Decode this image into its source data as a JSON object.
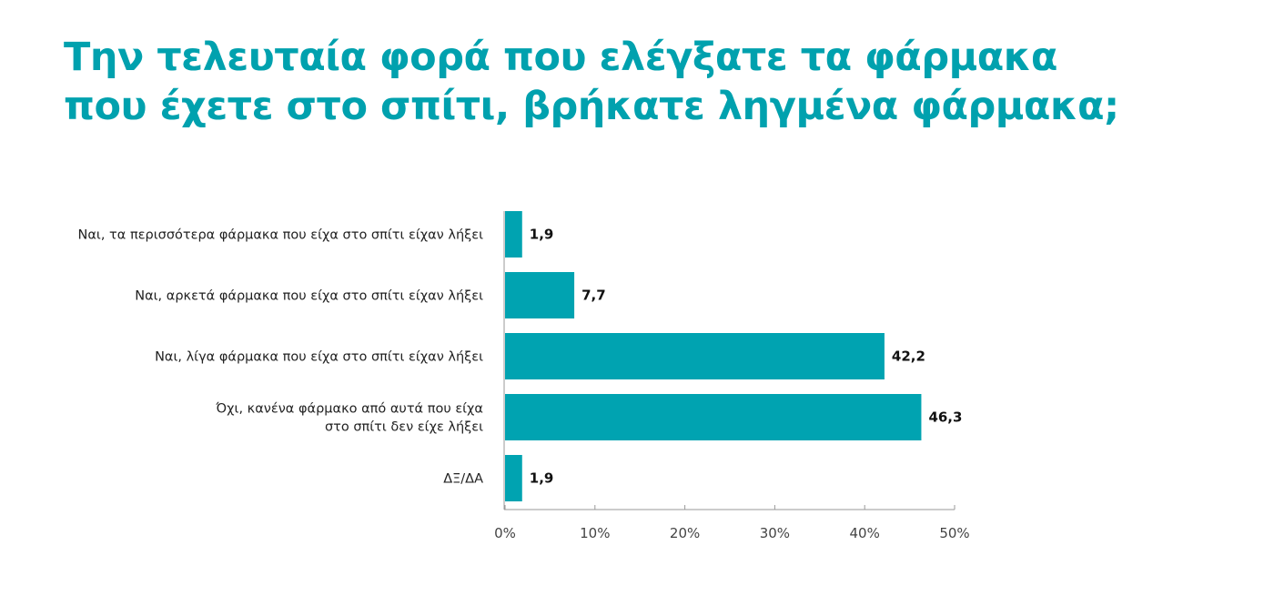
{
  "chart_data": {
    "type": "bar",
    "orientation": "horizontal",
    "title_lines": [
      "Την τελευταία φορά που ελέγξατε τα φάρμακα",
      "που έχετε στο σπίτι, βρήκατε ληγμένα φάρμακα;"
    ],
    "categories": [
      [
        "Ναι, τα περισσότερα φάρμακα που είχα στο σπίτι είχαν λήξει"
      ],
      [
        "Ναι, αρκετά φάρμακα που είχα στο σπίτι είχαν λήξει"
      ],
      [
        "Ναι, λίγα φάρμακα που είχα στο σπίτι είχαν λήξει"
      ],
      [
        "Όχι, κανένα φάρμακο από αυτά που είχα",
        "στο σπίτι δεν είχε λήξει"
      ],
      [
        "ΔΞ/ΔΑ"
      ]
    ],
    "values": [
      1.9,
      7.7,
      42.2,
      46.3,
      1.9
    ],
    "value_labels": [
      "1,9",
      "7,7",
      "42,2",
      "46,3",
      "1,9"
    ],
    "xlim": [
      0,
      50
    ],
    "xticks": [
      0,
      10,
      20,
      30,
      40,
      50
    ],
    "xtick_labels": [
      "0%",
      "10%",
      "20%",
      "30%",
      "40%",
      "50%"
    ],
    "xlabel": "",
    "ylabel": "",
    "grid": false,
    "legend": "none",
    "bar_color": "#00a3b1"
  }
}
